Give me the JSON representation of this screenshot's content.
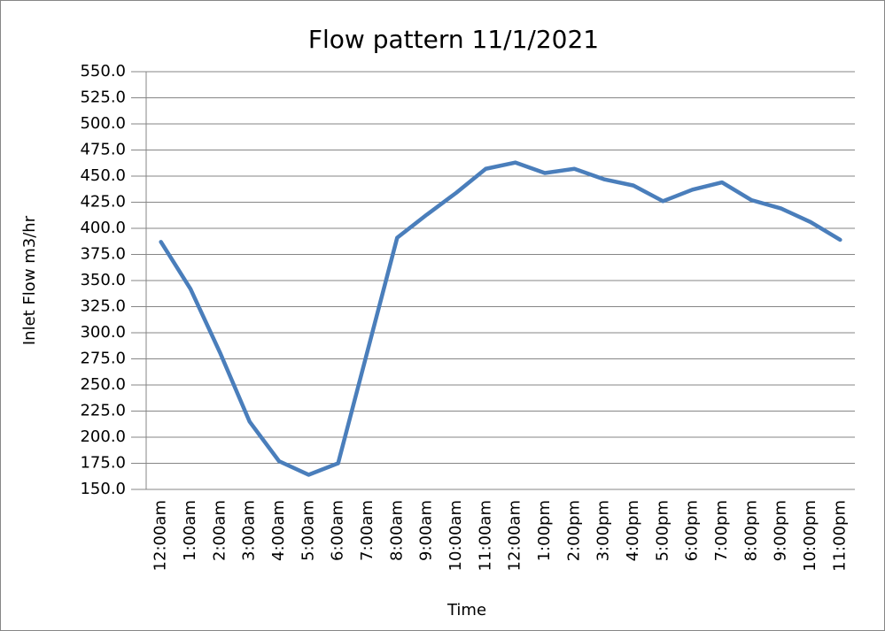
{
  "chart_data": {
    "type": "line",
    "title": "Flow pattern 11/1/2021",
    "x_label": "Time",
    "y_label": "Inlet Flow m3/hr",
    "categories": [
      "12:00am",
      "1:00am",
      "2:00am",
      "3:00am",
      "4:00am",
      "5:00am",
      "6:00am",
      "7:00am",
      "8:00am",
      "9:00am",
      "10:00am",
      "11:00am",
      "12:00am",
      "1:00pm",
      "2:00pm",
      "3:00pm",
      "4:00pm",
      "5:00pm",
      "6:00pm",
      "7:00pm",
      "8:00pm",
      "9:00pm",
      "10:00pm",
      "11:00pm"
    ],
    "series": [
      {
        "name": "Inlet Flow",
        "color": "#4a7ebb",
        "values": [
          387,
          342,
          281,
          215,
          177,
          164,
          175,
          283,
          391,
          413,
          434,
          457,
          463,
          453,
          457,
          447,
          441,
          426,
          437,
          444,
          427,
          419,
          406,
          389
        ]
      }
    ],
    "ylim": [
      150,
      550
    ],
    "yticks": [
      {
        "value": 150,
        "label": "150.0"
      },
      {
        "value": 175,
        "label": "175.0"
      },
      {
        "value": 200,
        "label": "200.0"
      },
      {
        "value": 225,
        "label": "225.0"
      },
      {
        "value": 250,
        "label": "250.0"
      },
      {
        "value": 275,
        "label": "275.0"
      },
      {
        "value": 300,
        "label": "300.0"
      },
      {
        "value": 325,
        "label": "325.0"
      },
      {
        "value": 350,
        "label": "350.0"
      },
      {
        "value": 375,
        "label": "375.0"
      },
      {
        "value": 400,
        "label": "400.0"
      },
      {
        "value": 425,
        "label": "425.0"
      },
      {
        "value": 450,
        "label": "450.0"
      },
      {
        "value": 475,
        "label": "475.0"
      },
      {
        "value": 500,
        "label": "500.0"
      },
      {
        "value": 525,
        "label": "525.0"
      },
      {
        "value": 550,
        "label": "550.0"
      }
    ],
    "grid": true
  }
}
